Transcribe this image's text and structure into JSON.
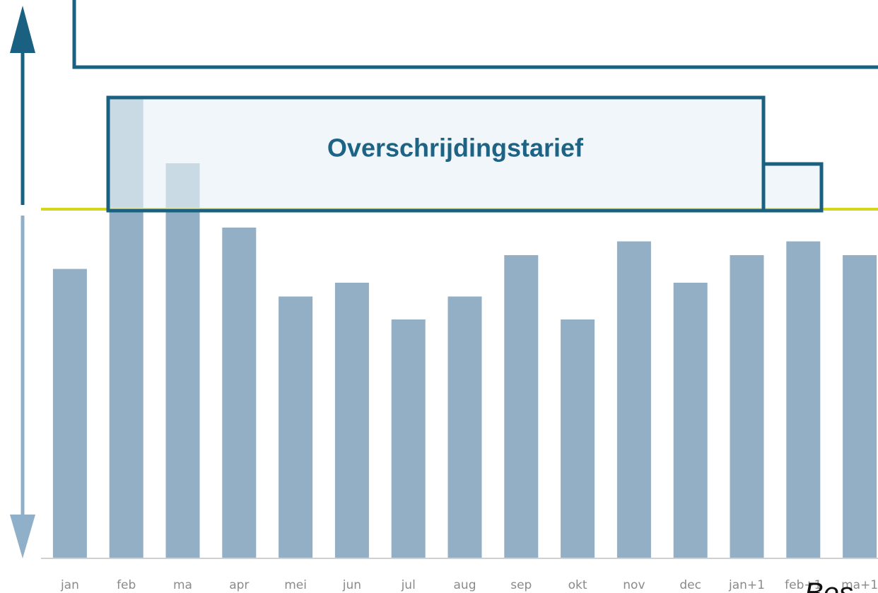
{
  "chart_data": {
    "type": "bar",
    "categories": [
      "jan",
      "feb",
      "ma",
      "apr",
      "mei",
      "jun",
      "jul",
      "aug",
      "sep",
      "okt",
      "nov",
      "dec",
      "jan+1",
      "feb+1",
      "ma+1"
    ],
    "values": [
      63,
      100,
      86,
      72,
      57,
      60,
      52,
      57,
      66,
      52,
      69,
      60,
      66,
      69,
      66
    ],
    "color": "#93afc6",
    "ylim": [
      0,
      100
    ],
    "threshold": 76,
    "threshold_color": "#d6d51e",
    "annotation": "Overschrijdingstarief",
    "footer_text": "Bes"
  }
}
